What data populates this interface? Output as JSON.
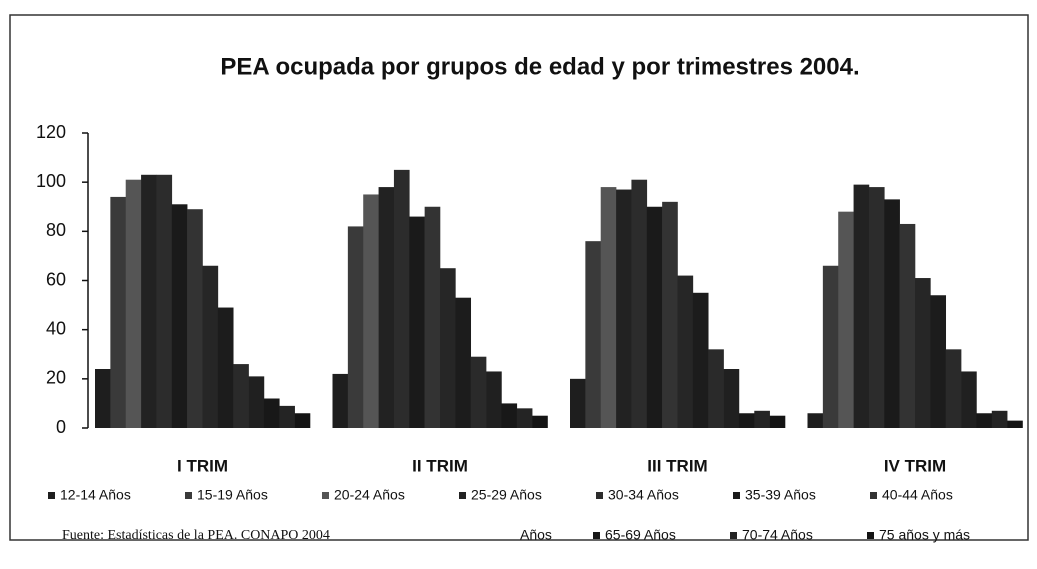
{
  "chart_data": {
    "type": "bar",
    "title": "PEA ocupada por grupos de edad y por trimestres 2004.",
    "source": "Fuente: Estadísticas de la PEA. CONAPO 2004",
    "legend_fragment": "Años",
    "categories": [
      "I TRIM",
      "II TRIM",
      "III TRIM",
      "IV TRIM"
    ],
    "ylim": [
      0,
      120
    ],
    "yticks": [
      0,
      20,
      40,
      60,
      80,
      100,
      120
    ],
    "grid": false,
    "series": [
      {
        "name": "12-14 Años",
        "color": "#1e1e1e",
        "values": [
          24,
          22,
          20,
          6
        ]
      },
      {
        "name": "15-19 Años",
        "color": "#3a3a3a",
        "values": [
          94,
          82,
          76,
          66
        ]
      },
      {
        "name": "20-24 Años",
        "color": "#555555",
        "values": [
          101,
          95,
          98,
          88
        ]
      },
      {
        "name": "25-29 Años",
        "color": "#222222",
        "values": [
          103,
          98,
          97,
          99
        ]
      },
      {
        "name": "30-34 Años",
        "color": "#2c2c2c",
        "values": [
          103,
          105,
          101,
          98
        ]
      },
      {
        "name": "35-39 Años",
        "color": "#1a1a1a",
        "values": [
          91,
          86,
          90,
          93
        ]
      },
      {
        "name": "40-44 Años",
        "color": "#333333",
        "values": [
          89,
          90,
          92,
          83
        ]
      },
      {
        "color": "#262626",
        "values": [
          66,
          65,
          62,
          61
        ]
      },
      {
        "color": "#1c1c1c",
        "values": [
          49,
          53,
          55,
          54
        ]
      },
      {
        "color": "#2a2a2a",
        "values": [
          26,
          29,
          32,
          32
        ]
      },
      {
        "color": "#202020",
        "values": [
          21,
          23,
          24,
          23
        ]
      },
      {
        "name": "65-69 Años",
        "color": "#181818",
        "values": [
          12,
          10,
          6,
          6
        ]
      },
      {
        "name": "70-74 Años",
        "color": "#242424",
        "values": [
          9,
          8,
          7,
          7
        ]
      },
      {
        "name": "75 años y más",
        "color": "#141414",
        "values": [
          6,
          5,
          5,
          3
        ]
      }
    ]
  }
}
